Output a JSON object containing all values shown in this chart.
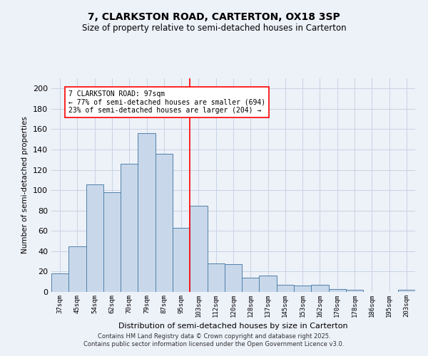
{
  "title": "7, CLARKSTON ROAD, CARTERTON, OX18 3SP",
  "subtitle": "Size of property relative to semi-detached houses in Carterton",
  "xlabel": "Distribution of semi-detached houses by size in Carterton",
  "ylabel": "Number of semi-detached properties",
  "categories": [
    "37sqm",
    "45sqm",
    "54sqm",
    "62sqm",
    "70sqm",
    "79sqm",
    "87sqm",
    "95sqm",
    "103sqm",
    "112sqm",
    "120sqm",
    "128sqm",
    "137sqm",
    "145sqm",
    "153sqm",
    "162sqm",
    "170sqm",
    "178sqm",
    "186sqm",
    "195sqm",
    "203sqm"
  ],
  "values": [
    18,
    45,
    106,
    98,
    126,
    156,
    136,
    63,
    85,
    28,
    27,
    14,
    16,
    7,
    6,
    7,
    3,
    2,
    0,
    0,
    2
  ],
  "bar_color": "#c8d8ea",
  "bar_edge_color": "#5080aa",
  "grid_color": "#c8d4e4",
  "vline_x": 7.5,
  "vline_color": "red",
  "annotation_text": "7 CLARKSTON ROAD: 97sqm\n← 77% of semi-detached houses are smaller (694)\n23% of semi-detached houses are larger (204) →",
  "annotation_box_color": "white",
  "annotation_box_edge_color": "red",
  "ylim": [
    0,
    210
  ],
  "yticks": [
    0,
    20,
    40,
    60,
    80,
    100,
    120,
    140,
    160,
    180,
    200
  ],
  "footnote": "Contains HM Land Registry data © Crown copyright and database right 2025.\nContains public sector information licensed under the Open Government Licence v3.0.",
  "background_color": "#edf1f8"
}
